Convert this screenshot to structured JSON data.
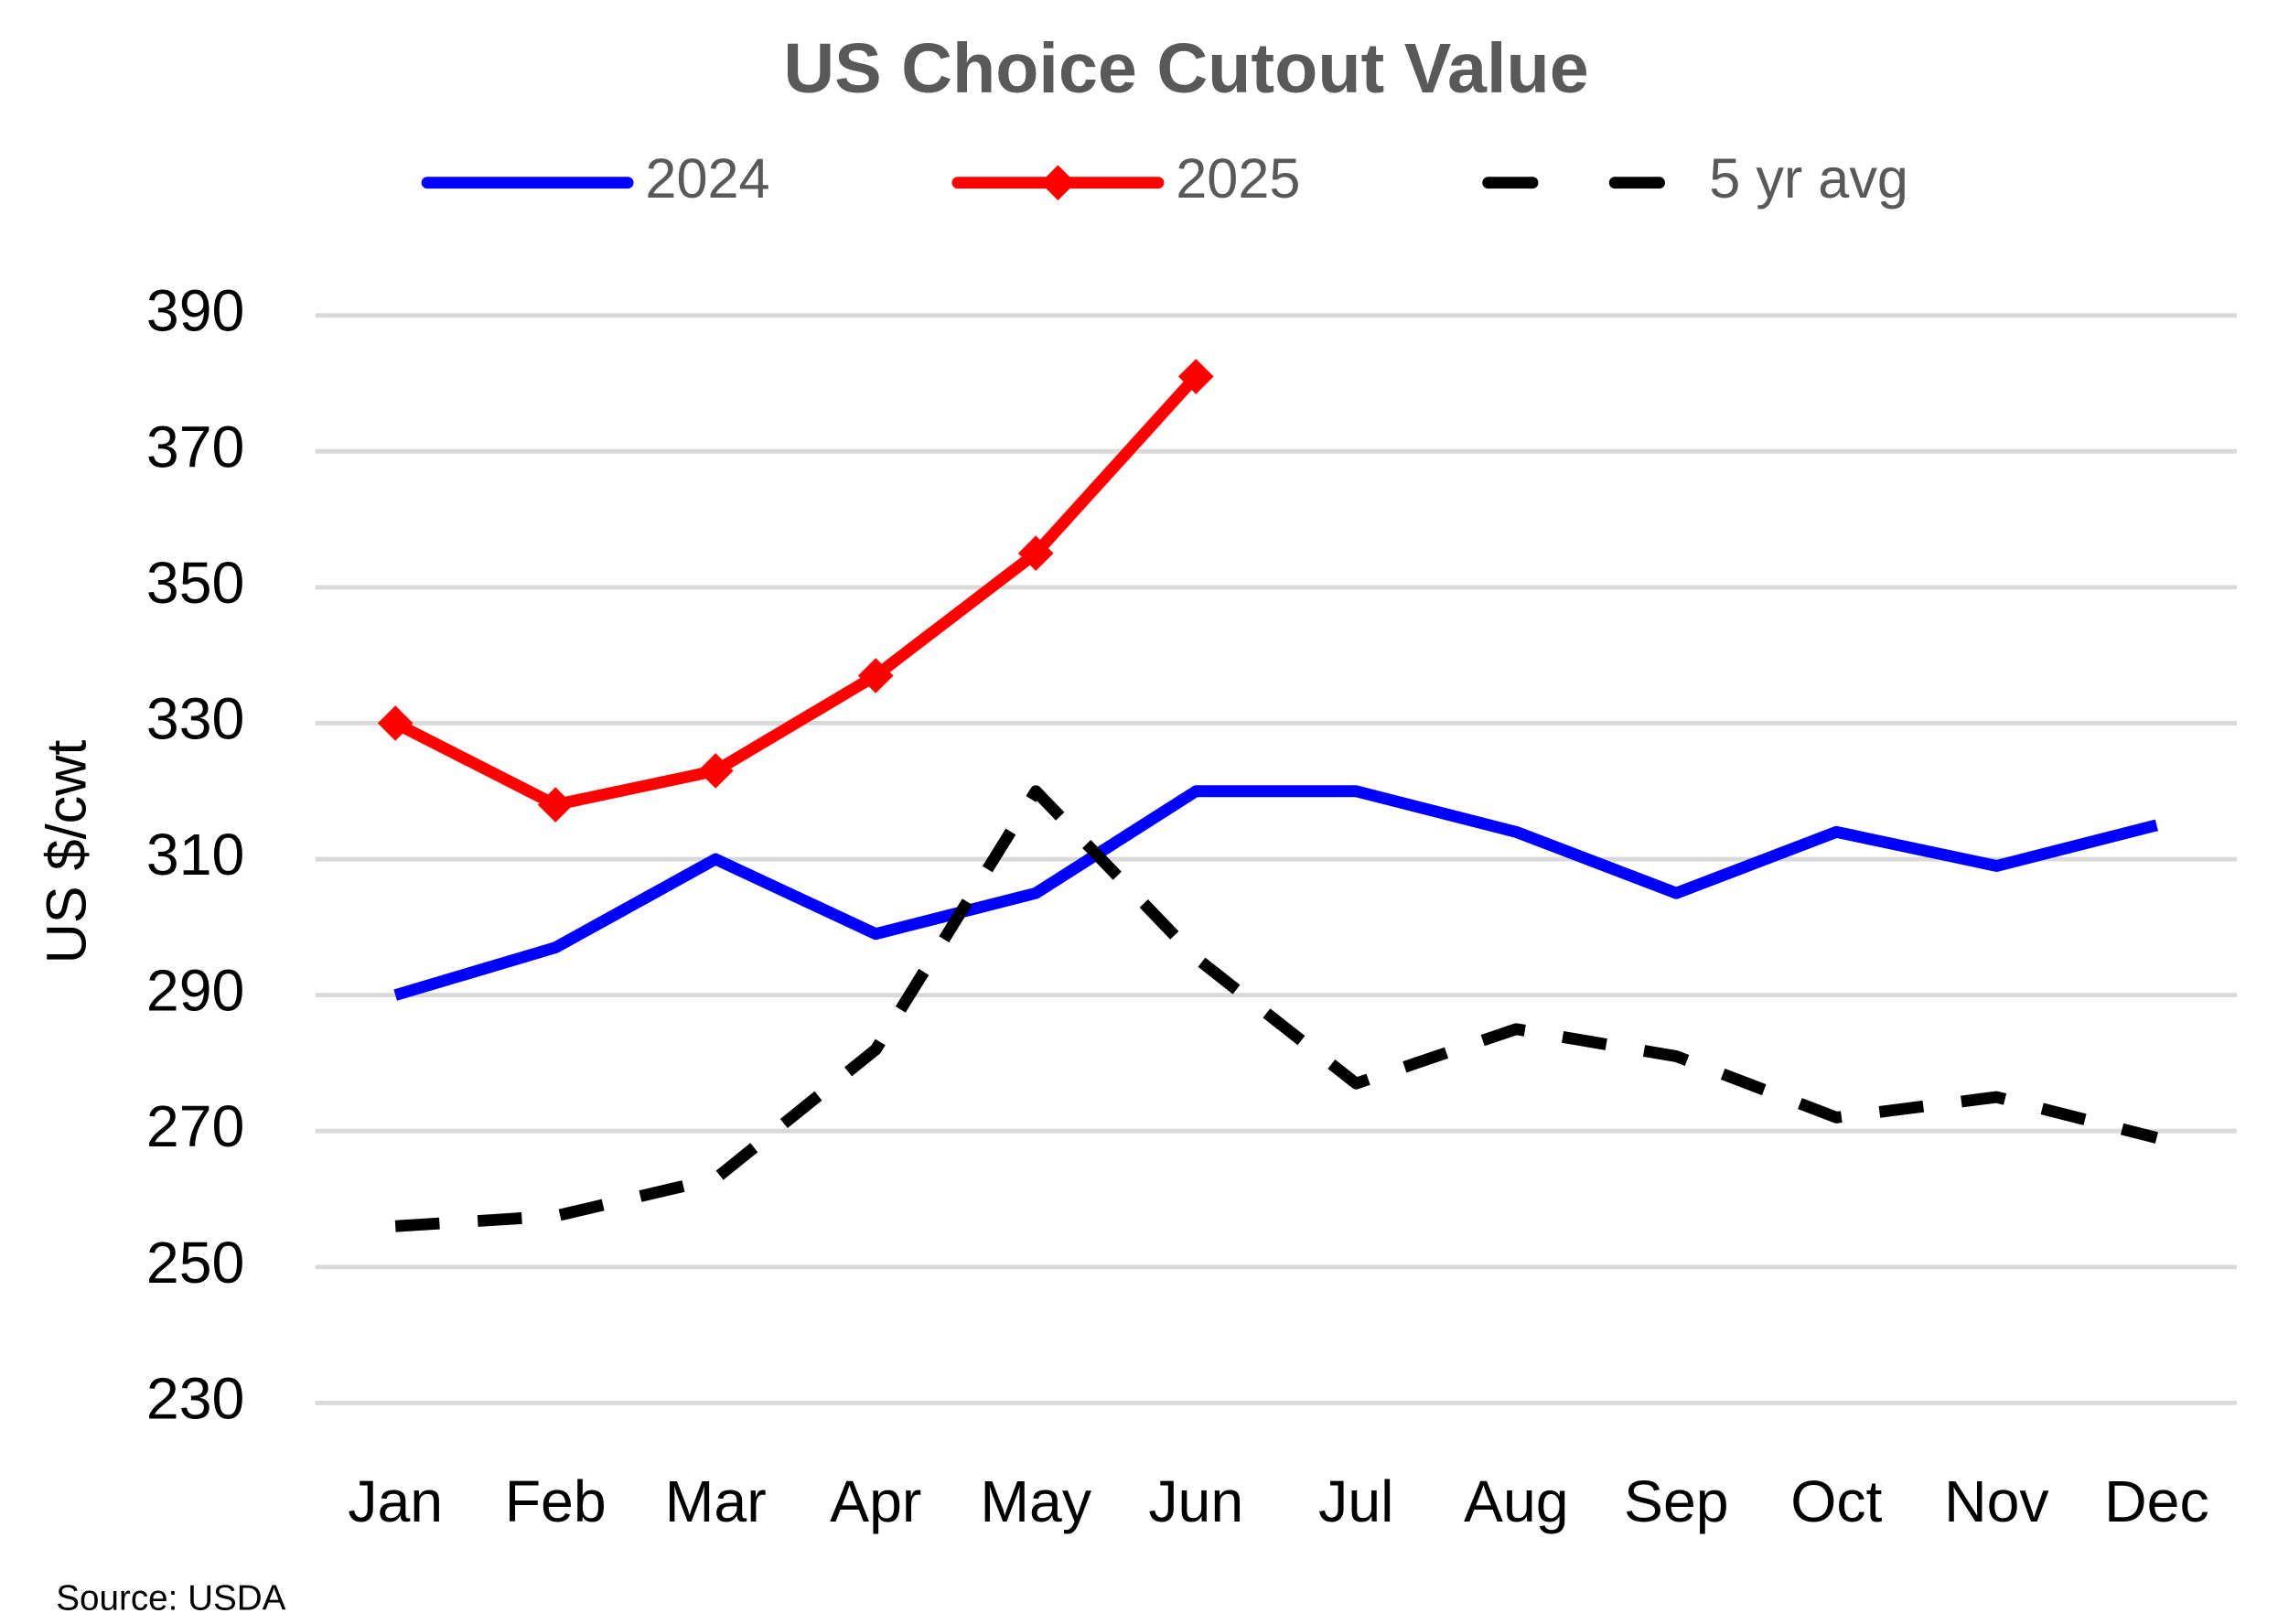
{
  "chart_data": {
    "type": "line",
    "title": "US Choice Cutout Value",
    "y_label": "US $/cwt",
    "source": "Source: USDA",
    "categories": [
      "Jan",
      "Feb",
      "Mar",
      "Apr",
      "May",
      "Jun",
      "Jul",
      "Aug",
      "Sep",
      "Oct",
      "Nov",
      "Dec"
    ],
    "series": [
      {
        "name": "2024",
        "color": "#0000ff",
        "dashed": false,
        "marker": false,
        "values": [
          290,
          297,
          310,
          299,
          305,
          320,
          320,
          314,
          305,
          314,
          309,
          315
        ]
      },
      {
        "name": "2025",
        "color": "#ff0000",
        "dashed": false,
        "marker": true,
        "values": [
          330,
          318,
          323,
          337,
          355,
          381,
          null,
          null,
          null,
          null,
          null,
          null
        ]
      },
      {
        "name": "5 yr avg",
        "color": "#000000",
        "dashed": true,
        "marker": false,
        "values": [
          256,
          257.5,
          263,
          282,
          320,
          295.5,
          277,
          285,
          281,
          272,
          275,
          269
        ]
      }
    ],
    "ylim": [
      230,
      390
    ],
    "yticks": [
      230,
      250,
      270,
      290,
      310,
      330,
      350,
      370,
      390
    ],
    "grid": true
  }
}
